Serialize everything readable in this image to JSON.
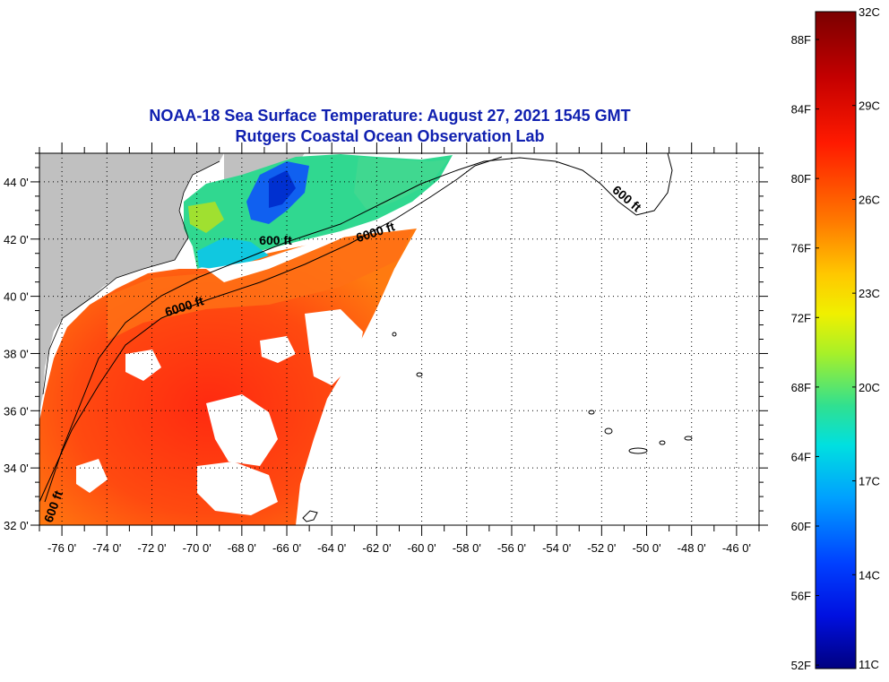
{
  "title": {
    "line1": "NOAA-18 Sea Surface Temperature:  August 27, 2021 1545 GMT",
    "line2": "Rutgers Coastal Ocean Observation Lab"
  },
  "map": {
    "lon_range": [
      -77,
      -45
    ],
    "lat_range": [
      32,
      45
    ],
    "lon_ticks": [
      {
        "v": -76,
        "label": "-76 0'"
      },
      {
        "v": -74,
        "label": "-74 0'"
      },
      {
        "v": -72,
        "label": "-72 0'"
      },
      {
        "v": -70,
        "label": "-70 0'"
      },
      {
        "v": -68,
        "label": "-68 0'"
      },
      {
        "v": -66,
        "label": "-66 0'"
      },
      {
        "v": -64,
        "label": "-64 0'"
      },
      {
        "v": -62,
        "label": "-62 0'"
      },
      {
        "v": -60,
        "label": "-60 0'"
      },
      {
        "v": -58,
        "label": "-58 0'"
      },
      {
        "v": -56,
        "label": "-56 0'"
      },
      {
        "v": -54,
        "label": "-54 0'"
      },
      {
        "v": -52,
        "label": "-52 0'"
      },
      {
        "v": -50,
        "label": "-50 0'"
      },
      {
        "v": -48,
        "label": "-48 0'"
      },
      {
        "v": -46,
        "label": "-46 0'"
      }
    ],
    "lat_ticks": [
      {
        "v": 44,
        "label": "44 0'"
      },
      {
        "v": 42,
        "label": "42 0'"
      },
      {
        "v": 40,
        "label": "40 0'"
      },
      {
        "v": 38,
        "label": "38 0'"
      },
      {
        "v": 36,
        "label": "36 0'"
      },
      {
        "v": 34,
        "label": "34 0'"
      },
      {
        "v": 32,
        "label": "32 0'"
      }
    ],
    "contour_labels": [
      {
        "text": "600 ft",
        "lon": -66.5,
        "lat": 41.8
      },
      {
        "text": "6000 ft",
        "lon": -62.0,
        "lat": 42.1
      },
      {
        "text": "6000 ft",
        "lon": -70.5,
        "lat": 39.5
      },
      {
        "text": "600 ft",
        "lon": -51.0,
        "lat": 43.3
      },
      {
        "text": "600 ft",
        "lon": -76.2,
        "lat": 32.6
      }
    ],
    "colors": {
      "land": "#c0c0c0",
      "no_data": "#ffffff",
      "grid": "#000000"
    }
  },
  "colorbar": {
    "min_c": 11,
    "max_c": 32,
    "celsius_labels": [
      {
        "v": 32,
        "label": "32C"
      },
      {
        "v": 29,
        "label": "29C"
      },
      {
        "v": 26,
        "label": "26C"
      },
      {
        "v": 23,
        "label": "23C"
      },
      {
        "v": 20,
        "label": "20C"
      },
      {
        "v": 17,
        "label": "17C"
      },
      {
        "v": 14,
        "label": "14C"
      },
      {
        "v": 11,
        "label": "11C"
      }
    ],
    "fahrenheit_labels": [
      {
        "v": 88,
        "label": "88F"
      },
      {
        "v": 84,
        "label": "84F"
      },
      {
        "v": 80,
        "label": "80F"
      },
      {
        "v": 76,
        "label": "76F"
      },
      {
        "v": 72,
        "label": "72F"
      },
      {
        "v": 68,
        "label": "68F"
      },
      {
        "v": 64,
        "label": "64F"
      },
      {
        "v": 60,
        "label": "60F"
      },
      {
        "v": 56,
        "label": "56F"
      },
      {
        "v": 52,
        "label": "52F"
      }
    ]
  }
}
